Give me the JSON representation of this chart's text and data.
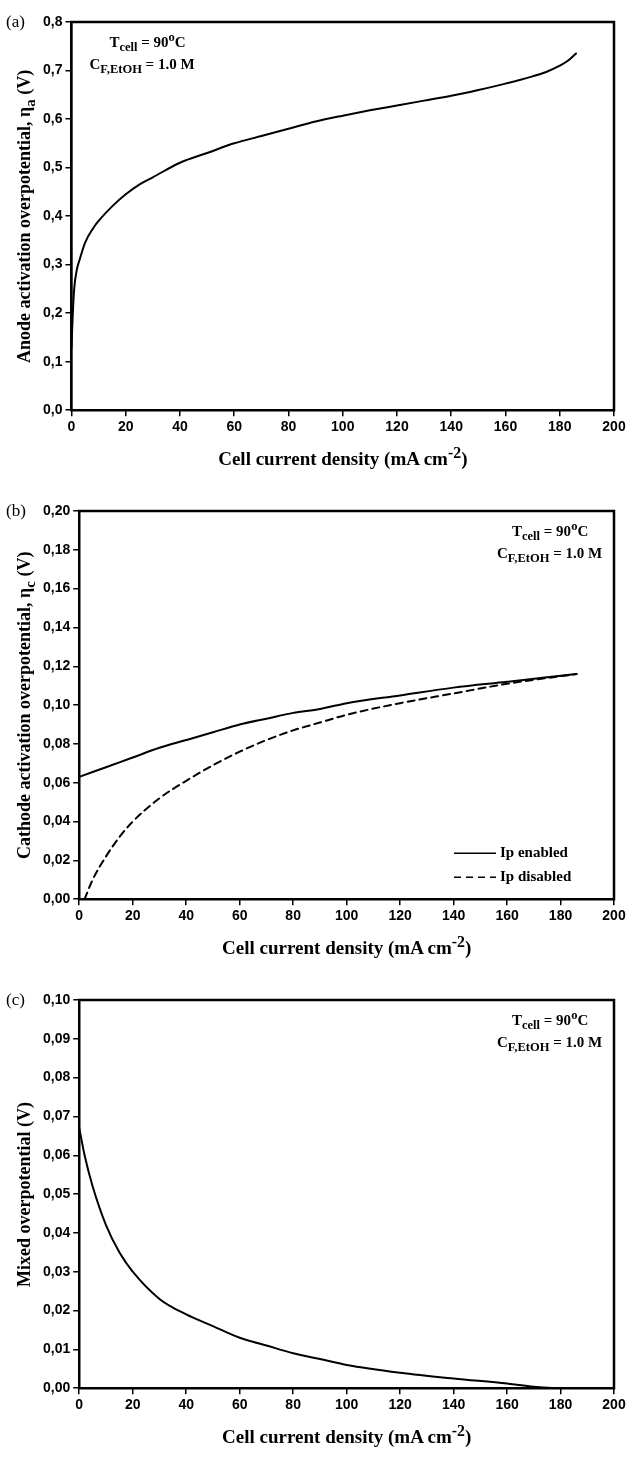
{
  "chart_data": [
    {
      "type": "line",
      "xlabel": "Cell current density (mA cm$^{-2}$)",
      "ylabel": "Anode activation overpotential, η$_{a}$ (V)",
      "annotations": [
        "(a)",
        "T$_{cell}$ = 90$^{o}$C",
        "C$_{F,EtOH}$ = 1.0 M"
      ],
      "marker": "none",
      "grid": false,
      "xlim": [
        0,
        200
      ],
      "xticks": [
        0,
        20,
        40,
        60,
        80,
        100,
        120,
        140,
        160,
        180,
        200
      ],
      "ylim": [
        0,
        0.8
      ],
      "yticks": [
        {
          "value": 0,
          "label": "0,0"
        },
        {
          "value": 0.1,
          "label": "0,1"
        },
        {
          "value": 0.2,
          "label": "0,2"
        },
        {
          "value": 0.3,
          "label": "0,3"
        },
        {
          "value": 0.4,
          "label": "0,4"
        },
        {
          "value": 0.5,
          "label": "0,5"
        },
        {
          "value": 0.6,
          "label": "0,6"
        },
        {
          "value": 0.7,
          "label": "0,7"
        },
        {
          "value": 0.8,
          "label": "0,8"
        }
      ],
      "series": [
        {
          "color": "#000000",
          "x": [
            0,
            0.5,
            1,
            2,
            3,
            5,
            8,
            10,
            15,
            20,
            25,
            30,
            40,
            50,
            60,
            70,
            80,
            90,
            100,
            110,
            120,
            130,
            140,
            150,
            160,
            170,
            175,
            180,
            183,
            186
          ],
          "values": [
            0.13,
            0.2,
            0.25,
            0.29,
            0.31,
            0.345,
            0.375,
            0.39,
            0.42,
            0.445,
            0.465,
            0.48,
            0.51,
            0.53,
            0.55,
            0.565,
            0.58,
            0.595,
            0.607,
            0.618,
            0.628,
            0.638,
            0.648,
            0.66,
            0.673,
            0.688,
            0.697,
            0.71,
            0.72,
            0.735
          ]
        }
      ]
    },
    {
      "type": "line",
      "xlabel": "Cell current density (mA cm$^{-2}$)",
      "ylabel": "Cathode activation overpotential, η$_{c}$ (V)",
      "annotations": [
        "(b)",
        "T$_{cell}$ = 90$^{o}$C",
        "C$_{F,EtOH}$ = 1.0 M"
      ],
      "marker": "none",
      "grid": false,
      "legend": "bottom right",
      "xlim": [
        0,
        200
      ],
      "xticks": [
        0,
        20,
        40,
        60,
        80,
        100,
        120,
        140,
        160,
        180,
        200
      ],
      "ylim": [
        0,
        0.2
      ],
      "yticks": [
        {
          "value": 0,
          "label": "0,00"
        },
        {
          "value": 0.02,
          "label": "0,02"
        },
        {
          "value": 0.04,
          "label": "0,04"
        },
        {
          "value": 0.06,
          "label": "0,06"
        },
        {
          "value": 0.08,
          "label": "0,08"
        },
        {
          "value": 0.1,
          "label": "0,10"
        },
        {
          "value": 0.12,
          "label": "0,12"
        },
        {
          "value": 0.14,
          "label": "0,14"
        },
        {
          "value": 0.16,
          "label": "0,16"
        },
        {
          "value": 0.18,
          "label": "0,18"
        },
        {
          "value": 0.2,
          "label": "0,20"
        }
      ],
      "series": [
        {
          "name": "Ip enabled",
          "color": "#000000",
          "line_style": "solid",
          "x": [
            0,
            10,
            20,
            30,
            40,
            50,
            60,
            70,
            80,
            90,
            100,
            120,
            140,
            160,
            186
          ],
          "values": [
            0.063,
            0.068,
            0.073,
            0.078,
            0.082,
            0.086,
            0.09,
            0.093,
            0.096,
            0.098,
            0.101,
            0.105,
            0.109,
            0.112,
            0.116
          ]
        },
        {
          "name": "Ip disabled",
          "color": "#000000",
          "line_style": "dashed",
          "x": [
            2,
            5,
            10,
            15,
            20,
            30,
            40,
            50,
            60,
            70,
            80,
            90,
            100,
            120,
            140,
            160,
            186
          ],
          "values": [
            0,
            0.01,
            0.022,
            0.032,
            0.04,
            0.052,
            0.061,
            0.069,
            0.076,
            0.082,
            0.087,
            0.091,
            0.095,
            0.101,
            0.106,
            0.111,
            0.116
          ]
        }
      ]
    },
    {
      "type": "line",
      "xlabel": "Cell current density (mA cm$^{-2}$)",
      "ylabel": "Mixed overpotential (V)",
      "annotations": [
        "(c)",
        "T$_{cell}$ = 90$^{o}$C",
        "C$_{F,EtOH}$ = 1.0 M"
      ],
      "marker": "none",
      "grid": false,
      "xlim": [
        0,
        200
      ],
      "xticks": [
        0,
        20,
        40,
        60,
        80,
        100,
        120,
        140,
        160,
        180,
        200
      ],
      "ylim": [
        0,
        0.1
      ],
      "yticks": [
        {
          "value": 0,
          "label": "0,00"
        },
        {
          "value": 0.01,
          "label": "0,01"
        },
        {
          "value": 0.02,
          "label": "0,02"
        },
        {
          "value": 0.03,
          "label": "0,03"
        },
        {
          "value": 0.04,
          "label": "0,04"
        },
        {
          "value": 0.05,
          "label": "0,05"
        },
        {
          "value": 0.06,
          "label": "0,06"
        },
        {
          "value": 0.07,
          "label": "0,07"
        },
        {
          "value": 0.08,
          "label": "0,08"
        },
        {
          "value": 0.09,
          "label": "0,09"
        },
        {
          "value": 0.1,
          "label": "0,10"
        }
      ],
      "series": [
        {
          "color": "#000000",
          "x": [
            0,
            2,
            5,
            10,
            15,
            20,
            30,
            40,
            50,
            60,
            70,
            80,
            90,
            100,
            120,
            140,
            160,
            170,
            178
          ],
          "values": [
            0.067,
            0.06,
            0.052,
            0.042,
            0.035,
            0.03,
            0.023,
            0.019,
            0.016,
            0.013,
            0.011,
            0.009,
            0.0075,
            0.006,
            0.004,
            0.0025,
            0.0012,
            0.0004,
            0
          ]
        }
      ]
    }
  ]
}
